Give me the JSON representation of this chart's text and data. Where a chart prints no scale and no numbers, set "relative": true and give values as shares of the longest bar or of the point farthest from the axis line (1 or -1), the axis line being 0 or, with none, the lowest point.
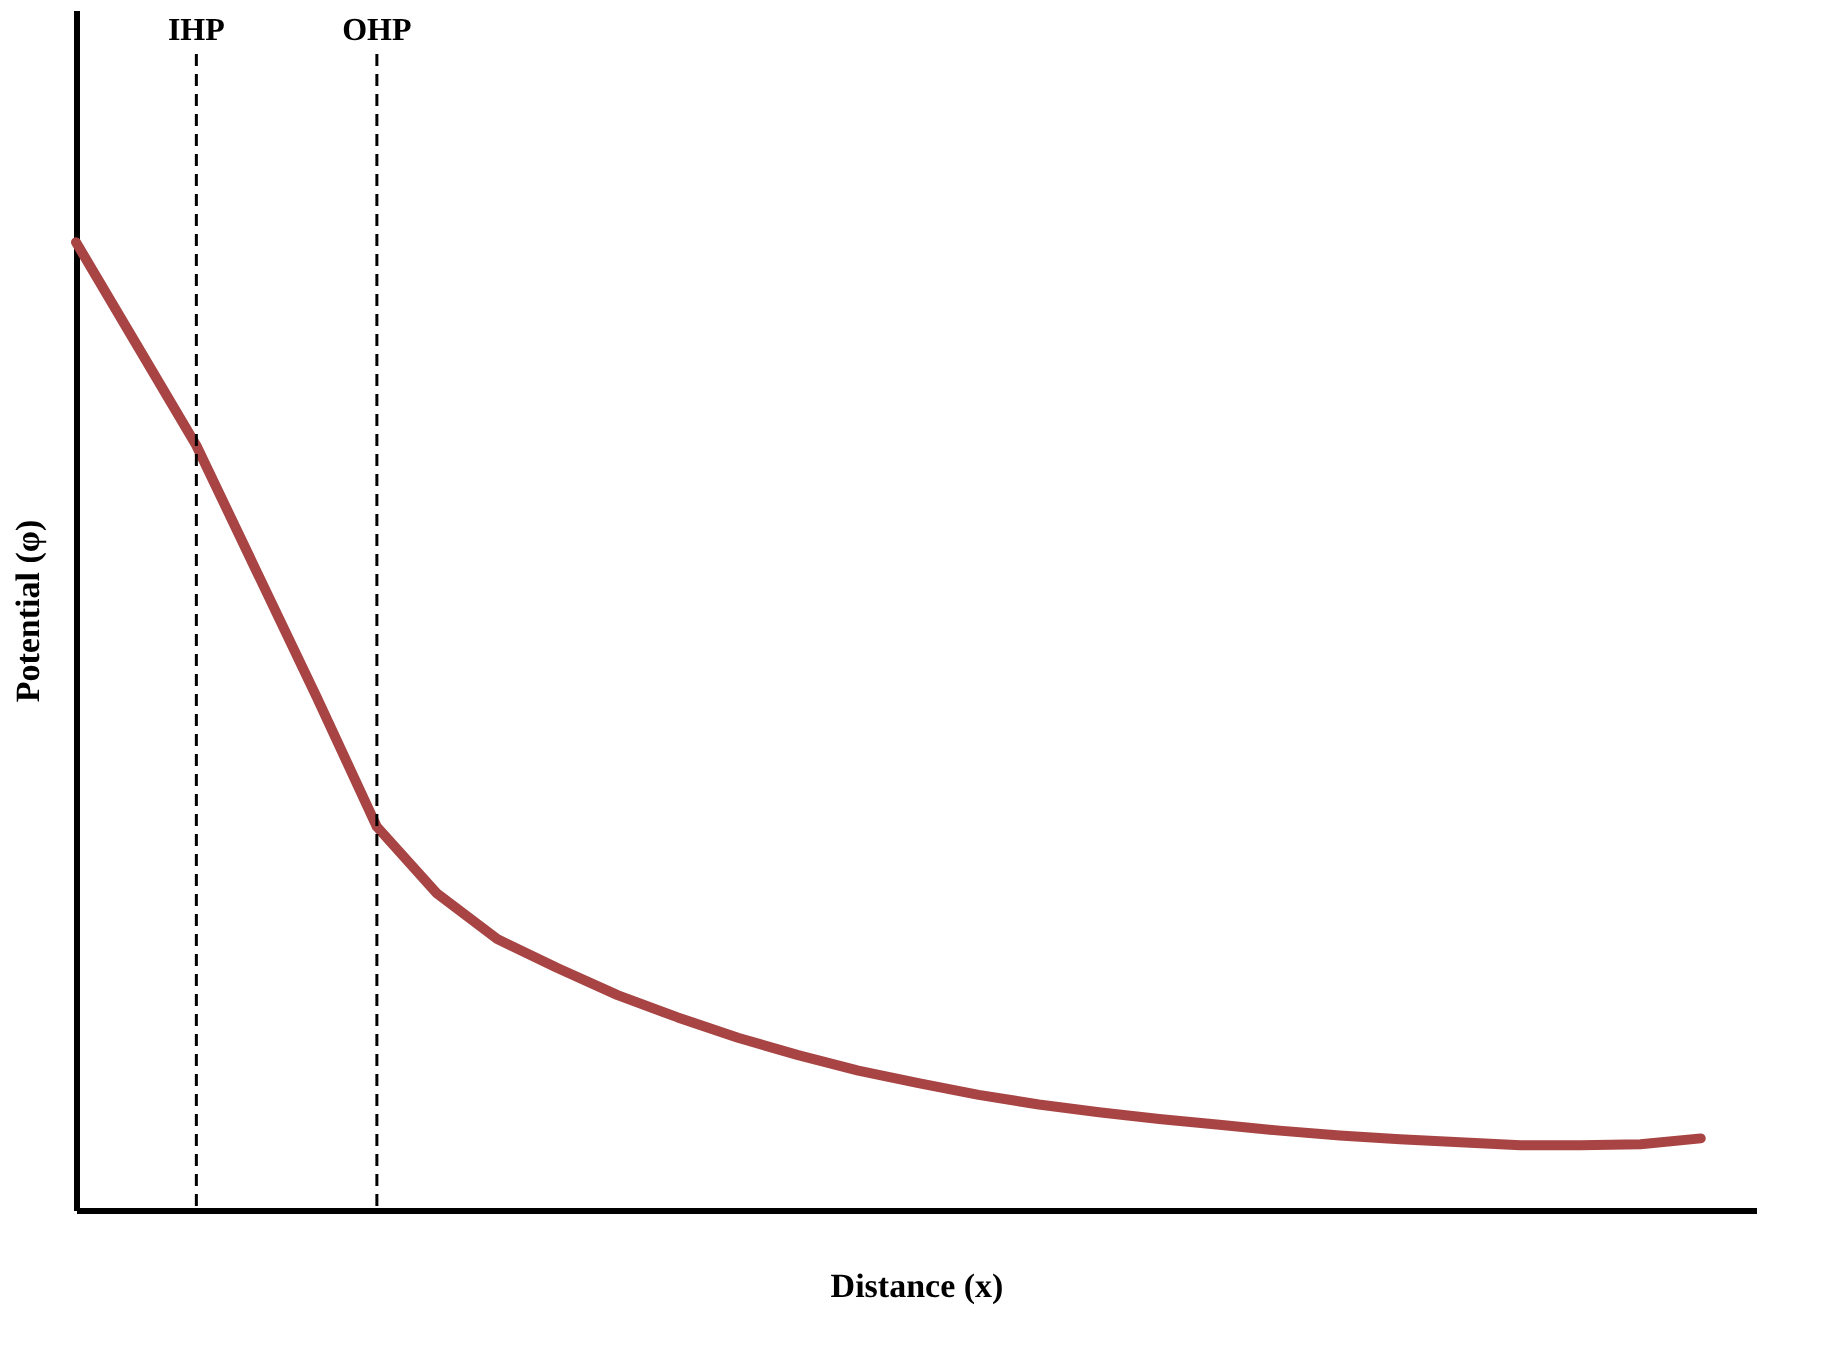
{
  "chart_data": {
    "type": "line",
    "relative": true,
    "xlabel": "Distance (x)",
    "ylabel": "Potential (φ)",
    "tick_labels": false,
    "line_style": "solid",
    "categories": [
      null,
      null,
      null,
      null,
      null,
      null,
      null,
      null,
      null,
      null,
      null,
      null,
      null,
      null,
      null,
      null,
      null,
      null,
      null,
      null,
      null,
      null,
      null,
      null,
      null,
      null,
      null,
      null
    ],
    "series": [
      {
        "color": "#a84444",
        "values": [
          1,
          0.895,
          0.79,
          0.66,
          0.53,
          0.396,
          0.327,
          0.28,
          0.25,
          0.222,
          0.199,
          0.178,
          0.16,
          0.144,
          0.131,
          0.119,
          0.109,
          0.101,
          0.094,
          0.088,
          0.082,
          0.077,
          0.073,
          0.07,
          0.067,
          0.067,
          0.068,
          0.074
        ]
      }
    ],
    "annotations": [
      "IHP",
      "OHP"
    ]
  }
}
